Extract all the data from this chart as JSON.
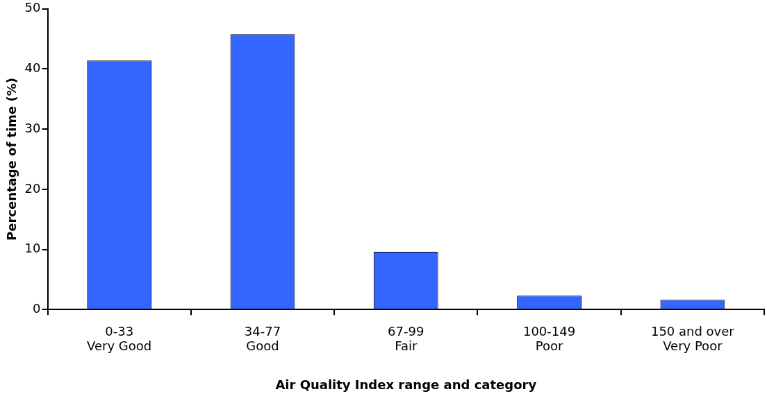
{
  "chart_data": {
    "type": "bar",
    "xlabel": "Air Quality Index range and category",
    "ylabel": "Percentage of time (%)",
    "categories": [
      "0-33\nVery Good",
      "34-77\nGood",
      "67-99\nFair",
      "100-149\nPoor",
      "150 and over\nVery Poor"
    ],
    "values": [
      41.4,
      45.8,
      9.6,
      2.3,
      1.6
    ],
    "color": "#3366ff",
    "ylim": [
      0,
      50
    ],
    "yticks": [
      0,
      10,
      20,
      30,
      40,
      50
    ],
    "grid": false,
    "legend": false
  }
}
